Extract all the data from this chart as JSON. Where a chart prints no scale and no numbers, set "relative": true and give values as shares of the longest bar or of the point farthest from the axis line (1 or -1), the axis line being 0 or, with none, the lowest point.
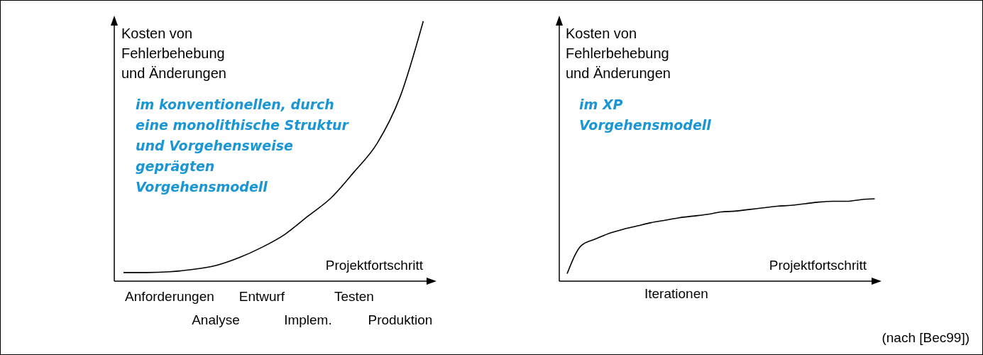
{
  "chart_data": [
    {
      "type": "line",
      "relative": true,
      "ylabel": "Kosten von\nFehlerbehebung\nund Änderungen",
      "xlabel": "Projektfortschritt",
      "categories": [
        null,
        null,
        "Anforderungen",
        null,
        "Analyse",
        null,
        "Entwurf",
        null,
        "Implem.",
        null,
        "Testen",
        null,
        "Produktion",
        null
      ],
      "series": [
        {
          "color": "#000000",
          "values": [
            0.033,
            0.033,
            0.036,
            0.045,
            0.06,
            0.09,
            0.13,
            0.18,
            0.25,
            0.32,
            0.42,
            0.53,
            0.71,
            1
          ]
        }
      ],
      "annotations": [
        "im konventionellen, durch\neine monolithische Struktur\nund Vorgehensweise\ngeprägten\nVorgehensmodell"
      ]
    },
    {
      "type": "line",
      "relative": true,
      "ylabel": "Kosten von\nFehlerbehebung\nund Änderungen",
      "xlabel": "Projektfortschritt",
      "categories": [
        null,
        null,
        null,
        null,
        null,
        null,
        null,
        null,
        null,
        null,
        null,
        null,
        null,
        null,
        null,
        null,
        null,
        null,
        null,
        null,
        null,
        null,
        null
      ],
      "series": [
        {
          "color": "#000000",
          "values": [
            0.09,
            0.43,
            0.51,
            0.58,
            0.63,
            0.67,
            0.71,
            0.74,
            0.77,
            0.79,
            0.81,
            0.84,
            0.85,
            0.87,
            0.89,
            0.91,
            0.92,
            0.94,
            0.96,
            0.97,
            0.97,
            0.99,
            1
          ]
        }
      ],
      "annotations": [
        "im XP\nVorgehensmodell",
        "Iterationen",
        "(nach [Bec99])"
      ]
    }
  ]
}
